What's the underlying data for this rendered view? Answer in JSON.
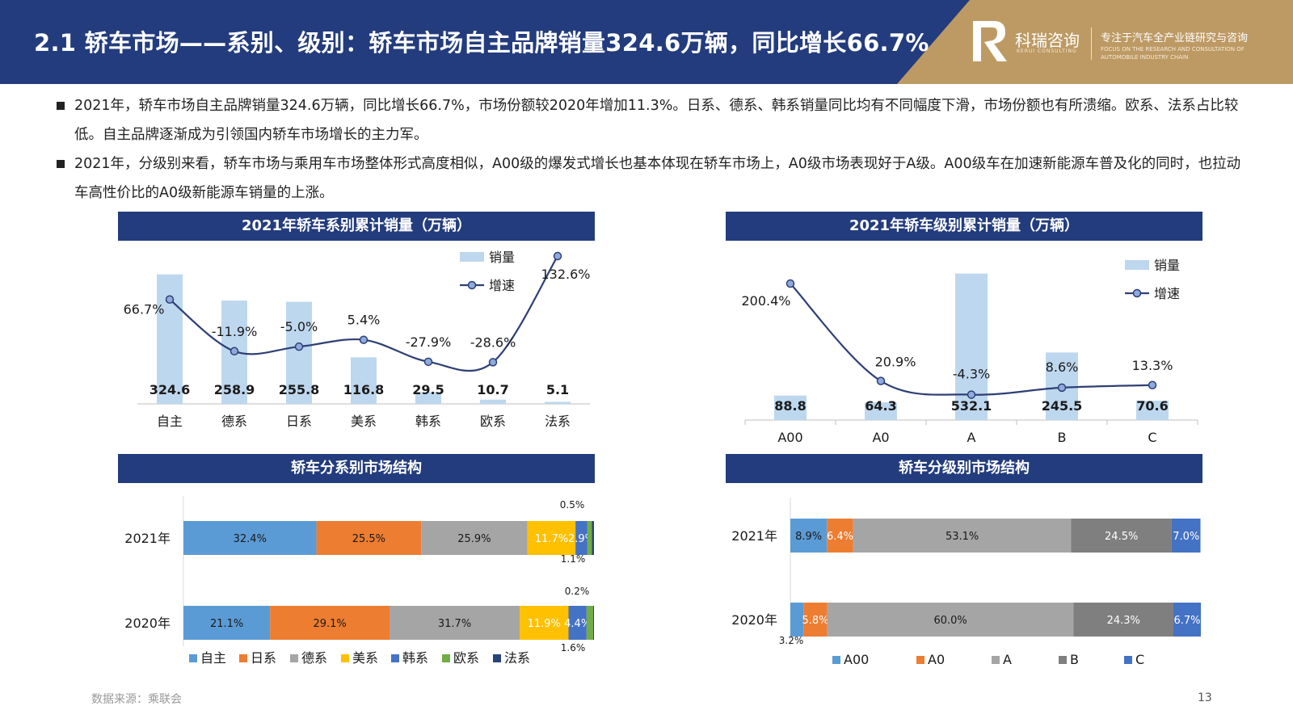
{
  "header": {
    "title": "2.1 轿车市场——系别、级别：轿车市场自主品牌销量324.6万辆，同比增长66.7%",
    "logo_cn": "科瑞咨询",
    "logo_en": "KERUI CONSULTING",
    "slogan": "专注于汽车全产业链研究与咨询",
    "slogan_en": "FOCUS ON THE RESEARCH AND CONSULTATION OF AUTOMOBILE INDUSTRY CHAIN"
  },
  "bullets": [
    "2021年，轿车市场自主品牌销量324.6万辆，同比增长66.7%，市场份额较2020年增加11.3%。日系、德系、韩系销量同比均有不同幅度下滑，市场份额也有所溃缩。欧系、法系占比较低。自主品牌逐渐成为引领国内轿车市场增长的主力军。",
    "2021年，分级别来看，轿车市场与乘用车市场整体形式高度相似，A00级的爆发式增长也基本体现在轿车市场上，A0级市场表现好于A级。A00级车在加速新能源车普及化的同时，也拉动车高性价比的A0级新能源车销量的上涨。"
  ],
  "colors": {
    "header_blue": "#233c7d",
    "header_gold": "#bd9a64",
    "bar_light_blue": "#bdd7ee",
    "line_navy": "#2e3f75"
  },
  "chart_data": [
    {
      "type": "bar",
      "title": "2021年轿车系别累计销量（万辆）",
      "categories": [
        "自主",
        "德系",
        "日系",
        "美系",
        "韩系",
        "欧系",
        "法系"
      ],
      "series": [
        {
          "name": "销量",
          "type": "bar",
          "values": [
            324.6,
            258.9,
            255.8,
            116.8,
            29.5,
            10.7,
            5.1
          ],
          "labels": [
            "324.6",
            "258.9",
            "255.8",
            "116.8",
            "29.5",
            "10.7",
            "5.1"
          ]
        },
        {
          "name": "增速",
          "type": "line",
          "values": [
            66.7,
            -11.9,
            -5.0,
            5.4,
            -27.9,
            -28.6,
            132.6
          ],
          "labels": [
            "66.7%",
            "-11.9%",
            "-5.0%",
            "5.4%",
            "-27.9%",
            "-28.6%",
            "132.6%"
          ]
        }
      ],
      "legend": "top-right",
      "bar_ylim": [
        0,
        330
      ],
      "line_ylim": [
        -60,
        140
      ]
    },
    {
      "type": "bar",
      "title": "2021年轿车级别累计销量（万辆）",
      "categories": [
        "A00",
        "A0",
        "A",
        "B",
        "C"
      ],
      "series": [
        {
          "name": "销量",
          "type": "bar",
          "values": [
            88.8,
            64.3,
            532.1,
            245.5,
            70.6
          ],
          "labels": [
            "88.8",
            "64.3",
            "532.1",
            "245.5",
            "70.6"
          ]
        },
        {
          "name": "增速",
          "type": "line",
          "values": [
            200.4,
            20.9,
            -4.3,
            8.6,
            13.3
          ],
          "labels": [
            "200.4%",
            "20.9%",
            "-4.3%",
            "8.6%",
            "13.3%"
          ]
        }
      ],
      "legend": "top-right",
      "bar_ylim": [
        0,
        540
      ],
      "line_ylim": [
        -60,
        260
      ]
    },
    {
      "type": "bar",
      "orientation": "horizontal",
      "stacked": true,
      "title": "轿车分系别市场结构",
      "categories": [
        "2021年",
        "2020年"
      ],
      "series": [
        {
          "name": "自主",
          "values": [
            32.4,
            21.1
          ],
          "labels": [
            "32.4%",
            "21.1%"
          ]
        },
        {
          "name": "日系",
          "values": [
            25.5,
            29.1
          ],
          "labels": [
            "25.5%",
            "29.1%"
          ]
        },
        {
          "name": "德系",
          "values": [
            25.9,
            31.7
          ],
          "labels": [
            "25.9%",
            "31.7%"
          ]
        },
        {
          "name": "美系",
          "values": [
            11.7,
            11.9
          ],
          "labels": [
            "11.7%",
            "11.9%"
          ]
        },
        {
          "name": "韩系",
          "values": [
            2.9,
            4.4
          ],
          "labels": [
            "2.9%",
            "4.4%"
          ]
        },
        {
          "name": "欧系",
          "values": [
            1.1,
            1.6
          ],
          "labels": [
            "1.1%",
            "1.6%"
          ]
        },
        {
          "name": "法系",
          "values": [
            0.5,
            0.2
          ],
          "labels": [
            "0.5%",
            "0.2%"
          ]
        }
      ],
      "legend": "bottom"
    },
    {
      "type": "bar",
      "orientation": "horizontal",
      "stacked": true,
      "title": "轿车分级别市场结构",
      "categories": [
        "2021年",
        "2020年"
      ],
      "series": [
        {
          "name": "A00",
          "values": [
            8.9,
            3.2
          ],
          "labels": [
            "8.9%",
            "3.2%"
          ]
        },
        {
          "name": "A0",
          "values": [
            6.4,
            5.8
          ],
          "labels": [
            "6.4%",
            "5.8%"
          ]
        },
        {
          "name": "A",
          "values": [
            53.1,
            60.0
          ],
          "labels": [
            "53.1%",
            "60.0%"
          ]
        },
        {
          "name": "B",
          "values": [
            24.5,
            24.3
          ],
          "labels": [
            "24.5%",
            "24.3%"
          ]
        },
        {
          "name": "C",
          "values": [
            7.0,
            6.7
          ],
          "labels": [
            "7.0%",
            "6.7%"
          ]
        }
      ],
      "legend": "bottom"
    }
  ],
  "stack_colors_series": [
    "#5b9bd5",
    "#ed7d31",
    "#a5a5a5",
    "#ffc000",
    "#4472c4",
    "#70ad47",
    "#264478"
  ],
  "stack_colors_class": [
    "#5b9bd5",
    "#ed7d31",
    "#a5a5a5",
    "#7f7f7f",
    "#4472c4"
  ],
  "footer": {
    "source": "数据来源：乘联会",
    "page": "13"
  }
}
